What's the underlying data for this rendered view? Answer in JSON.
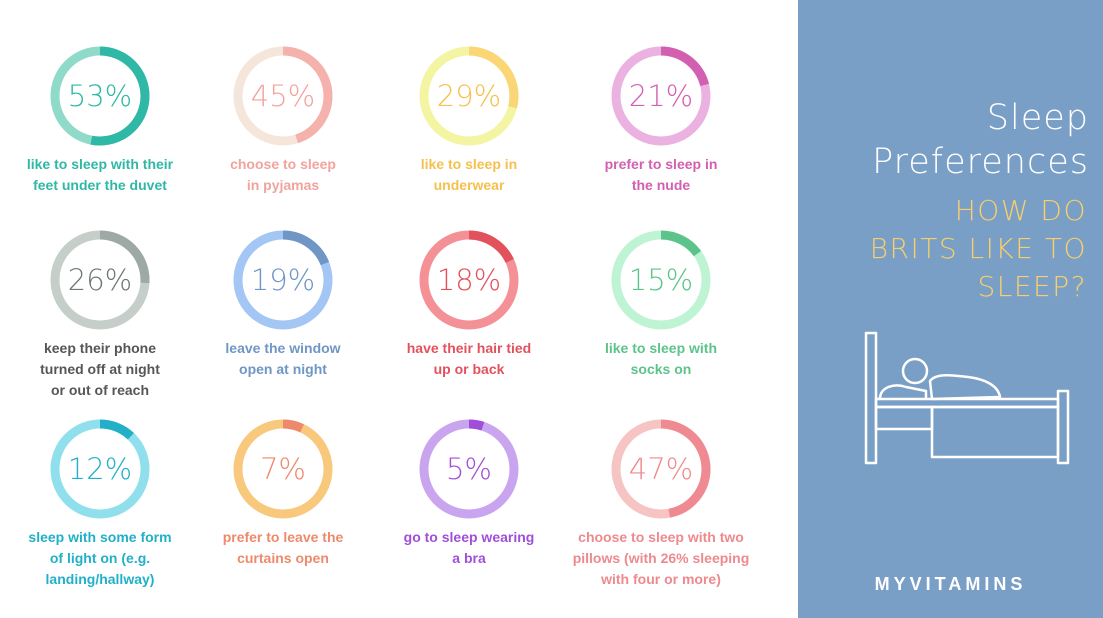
{
  "chart_data": {
    "type": "donut-grid",
    "items": [
      {
        "value": 53,
        "label": "53%",
        "caption": [
          "like to sleep with their",
          "feet under the duvet"
        ],
        "color": "#2fb8a6",
        "light": "#8fdac9",
        "text": "#2fb8a6"
      },
      {
        "value": 45,
        "label": "45%",
        "caption": [
          "choose to sleep",
          "in pyjamas"
        ],
        "color": "#f5b1ab",
        "light": "#f5e6dc",
        "text": "#f2a39d"
      },
      {
        "value": 29,
        "label": "29%",
        "caption": [
          "like to sleep in",
          "underwear"
        ],
        "color": "#fbd676",
        "light": "#f4f5a2",
        "text": "#f5c04e"
      },
      {
        "value": 21,
        "label": "21%",
        "caption": [
          "prefer to sleep in",
          "the nude"
        ],
        "color": "#d35fb0",
        "light": "#ebb1e0",
        "text": "#d35fb0"
      },
      {
        "value": 26,
        "label": "26%",
        "caption": [
          "keep their phone",
          "turned off at night",
          "or out of reach"
        ],
        "color": "#9ea8a5",
        "light": "#c5cec9",
        "text": "#6b7876",
        "captionColor": "#565656"
      },
      {
        "value": 19,
        "label": "19%",
        "caption": [
          "leave the window",
          "open at night"
        ],
        "color": "#6f96c5",
        "light": "#a3c6f4",
        "text": "#6f96c5"
      },
      {
        "value": 18,
        "label": "18%",
        "caption": [
          "have their hair tied",
          "up or back"
        ],
        "color": "#e2525c",
        "light": "#f49196",
        "text": "#e2525c"
      },
      {
        "value": 15,
        "label": "15%",
        "caption": [
          "like to sleep with",
          "socks on"
        ],
        "color": "#5cc48a",
        "light": "#bef4d3",
        "text": "#5cc48a"
      },
      {
        "value": 12,
        "label": "12%",
        "caption": [
          "sleep with some form",
          "of light on (e.g.",
          "landing/hallway)"
        ],
        "color": "#22b0c8",
        "light": "#8fe0ec",
        "text": "#22b0c8"
      },
      {
        "value": 7,
        "label": "7%",
        "caption": [
          "prefer to leave the",
          "curtains open"
        ],
        "color": "#ee8a6c",
        "light": "#f8c97c",
        "text": "#ee8a6c"
      },
      {
        "value": 5,
        "label": "5%",
        "caption": [
          "go to sleep wearing",
          "a bra"
        ],
        "color": "#a04ed9",
        "light": "#c9a5ef",
        "text": "#a14fd8"
      },
      {
        "value": 47,
        "label": "47%",
        "caption": [
          "choose to sleep with two",
          "pillows (with 26% sleeping",
          "with four or more)"
        ],
        "color": "#f08a92",
        "light": "#f6c4c2",
        "text": "#ee8a8e"
      }
    ]
  },
  "sidebar": {
    "title": [
      "Sleep",
      "Preferences"
    ],
    "subtitle": [
      "HOW DO",
      "BRITS LIKE TO",
      "SLEEP?"
    ],
    "brand": "MYVITAMINS",
    "bed_icon": "bed-icon"
  },
  "colors": {
    "sidebar_bg": "#7a9fc6",
    "accent_yellow": "#f7cf6c",
    "white": "#ffffff"
  }
}
